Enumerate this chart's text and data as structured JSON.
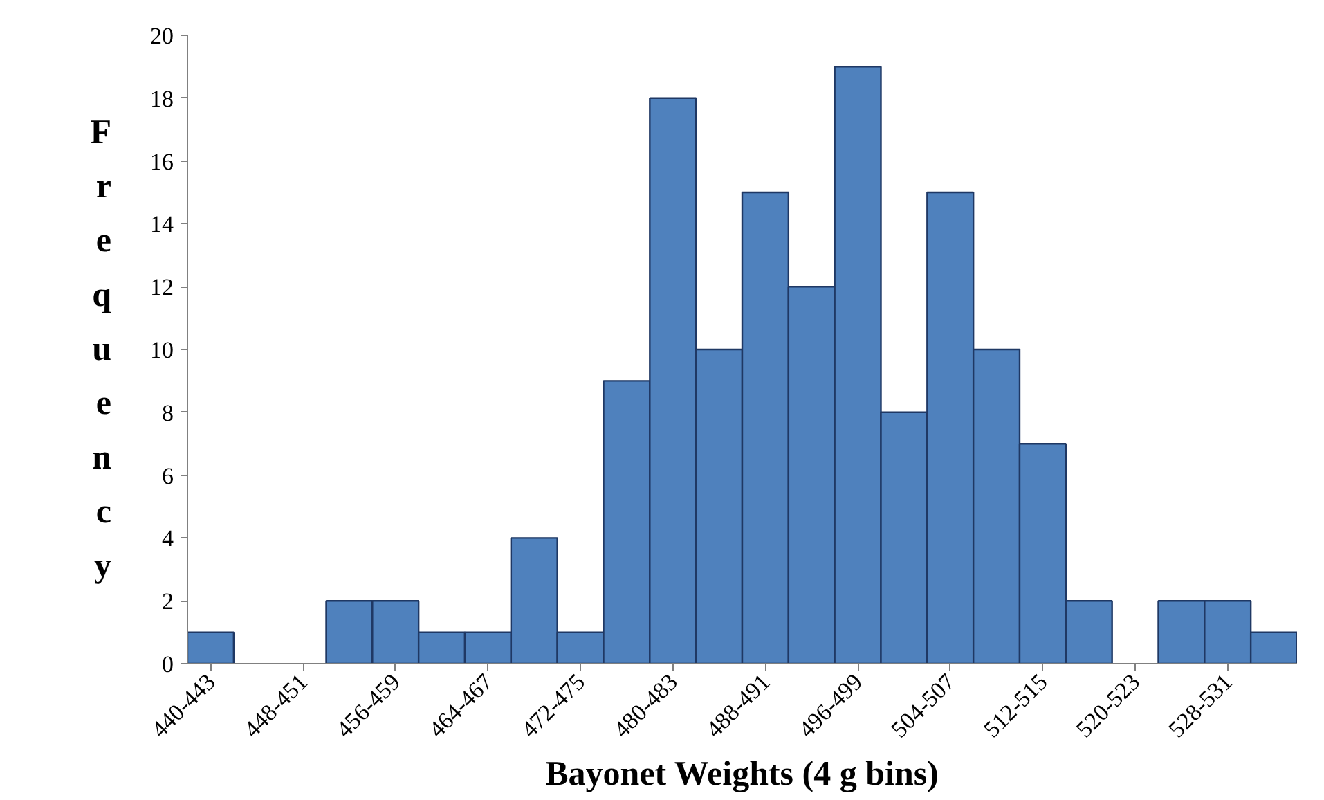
{
  "chart_data": {
    "type": "bar",
    "xlabel": "Bayonet Weights (4 g bins)",
    "ylabel": "Frequency",
    "categories": [
      "440-443",
      null,
      "448-451",
      null,
      "456-459",
      null,
      "464-467",
      null,
      "472-475",
      null,
      "480-483",
      null,
      "488-491",
      null,
      "496-499",
      null,
      "504-507",
      null,
      "512-515",
      null,
      "520-523",
      null,
      "528-531",
      null
    ],
    "values": [
      1,
      0,
      0,
      2,
      2,
      1,
      1,
      4,
      1,
      9,
      18,
      10,
      15,
      12,
      19,
      8,
      15,
      10,
      7,
      2,
      0,
      2,
      2,
      1
    ],
    "color": "#4f81bd",
    "ylim": [
      0,
      20
    ],
    "yticks": [
      0,
      2,
      4,
      6,
      8,
      10,
      12,
      14,
      16,
      18,
      20
    ],
    "grid": false
  }
}
